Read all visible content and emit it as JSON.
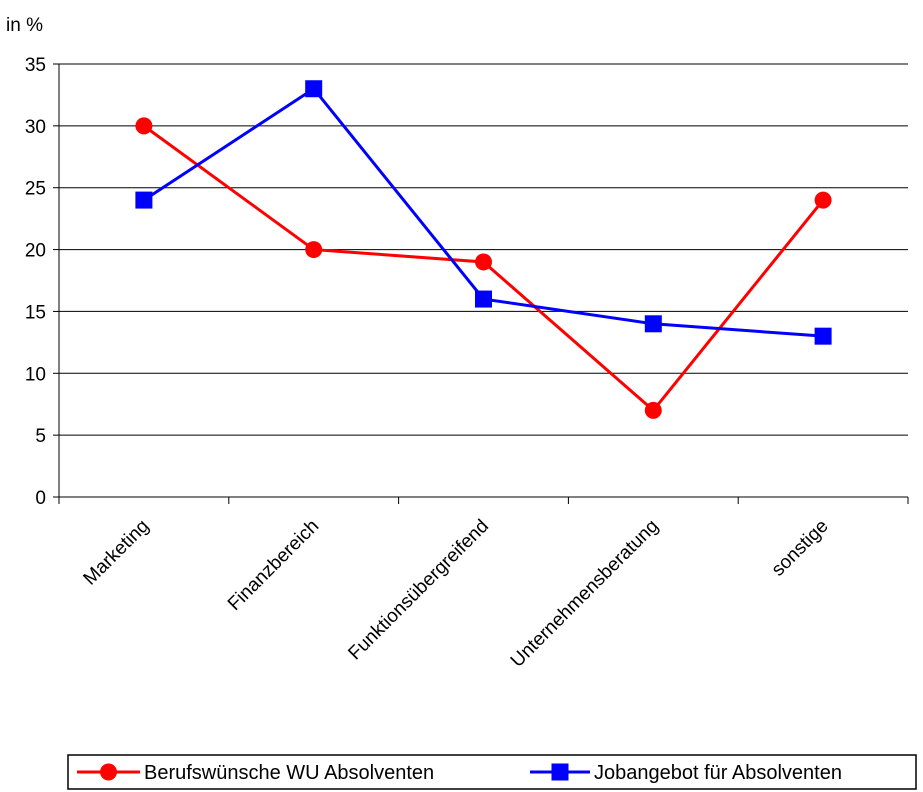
{
  "chart_data": {
    "type": "line",
    "ylabel": "in %",
    "categories": [
      "Marketing",
      "Finanzbereich",
      "Funktionsübergreifend",
      "Unternehmensberatung",
      "sonstige"
    ],
    "ylim": [
      0,
      35
    ],
    "yticks": [
      0,
      5,
      10,
      15,
      20,
      25,
      30,
      35
    ],
    "grid": true,
    "legend_position": "bottom",
    "series": [
      {
        "name": "Berufswünsche WU Absolventen",
        "marker": "circle",
        "color": "#ff0000",
        "values": [
          30,
          20,
          19,
          7,
          24
        ]
      },
      {
        "name": "Jobangebot für Absolventen",
        "marker": "square",
        "color": "#0000ff",
        "values": [
          24,
          33,
          16,
          14,
          13
        ]
      }
    ]
  }
}
